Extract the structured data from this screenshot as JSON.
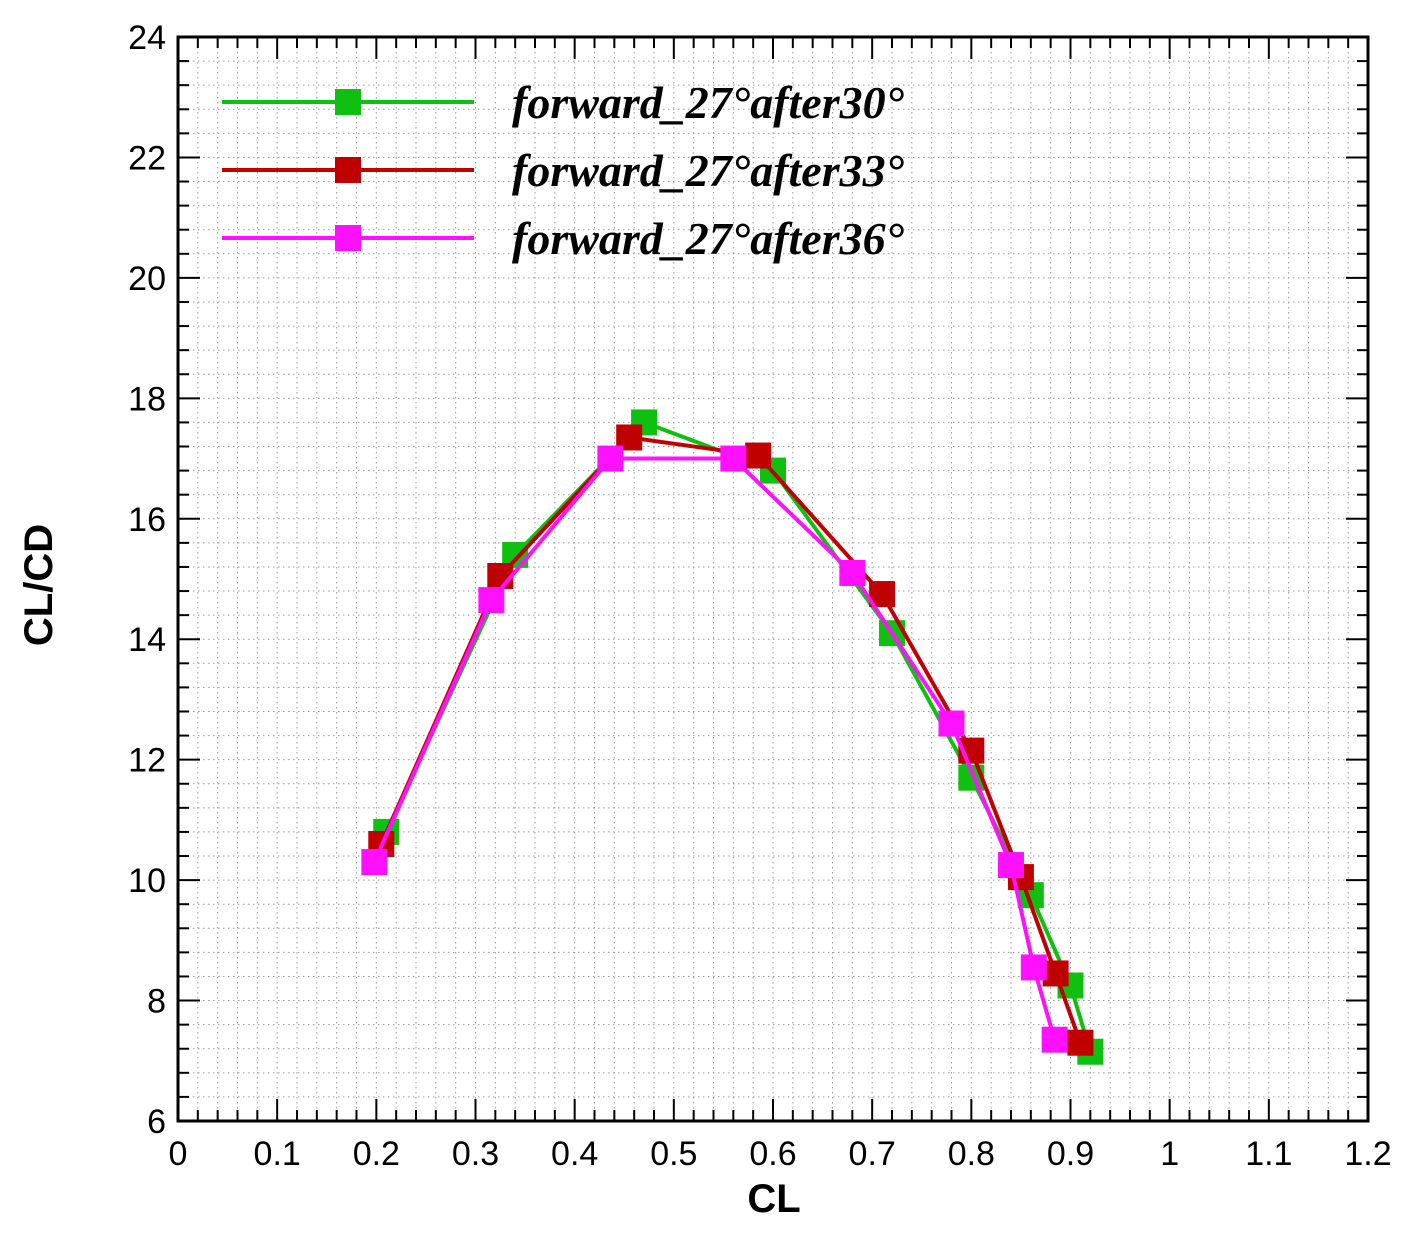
{
  "chart_data": {
    "type": "line",
    "title": "",
    "xlabel": "CL",
    "ylabel": "CL/CD",
    "xlim": [
      0,
      1.2
    ],
    "ylim": [
      6,
      24
    ],
    "xticks": [
      "0",
      "0.1",
      "0.2",
      "0.3",
      "0.4",
      "0.5",
      "0.6",
      "0.7",
      "0.8",
      "0.9",
      "1",
      "1.1",
      "1.2"
    ],
    "yticks": [
      "6",
      "8",
      "10",
      "12",
      "14",
      "16",
      "18",
      "20",
      "22",
      "24"
    ],
    "grid": "dotted",
    "legend_position": "top-left",
    "marker": "square",
    "series": [
      {
        "name": "forward_27°after30°",
        "color": "#10c010",
        "points": [
          [
            0.21,
            10.8
          ],
          [
            0.34,
            15.4
          ],
          [
            0.47,
            17.6
          ],
          [
            0.6,
            16.8
          ],
          [
            0.72,
            14.1
          ],
          [
            0.8,
            11.7
          ],
          [
            0.86,
            9.75
          ],
          [
            0.9,
            8.25
          ],
          [
            0.92,
            7.15
          ]
        ]
      },
      {
        "name": "forward_27°after33°",
        "color": "#c00000",
        "points": [
          [
            0.205,
            10.6
          ],
          [
            0.325,
            15.05
          ],
          [
            0.455,
            17.35
          ],
          [
            0.585,
            17.05
          ],
          [
            0.71,
            14.75
          ],
          [
            0.8,
            12.15
          ],
          [
            0.85,
            10.05
          ],
          [
            0.885,
            8.45
          ],
          [
            0.91,
            7.3
          ]
        ]
      },
      {
        "name": "forward_27°after36°",
        "color": "#ff10ff",
        "points": [
          [
            0.198,
            10.3
          ],
          [
            0.316,
            14.65
          ],
          [
            0.436,
            17.0
          ],
          [
            0.56,
            17.0
          ],
          [
            0.68,
            15.1
          ],
          [
            0.78,
            12.6
          ],
          [
            0.84,
            10.25
          ],
          [
            0.863,
            8.55
          ],
          [
            0.884,
            7.35
          ]
        ]
      }
    ]
  }
}
